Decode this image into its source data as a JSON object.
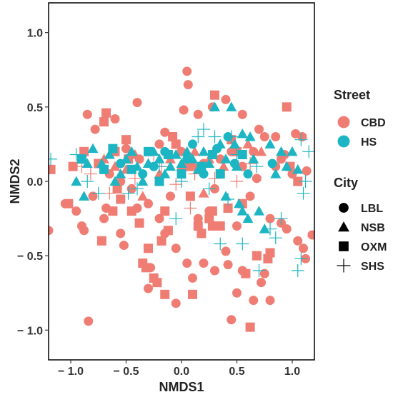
{
  "chart_data": {
    "type": "scatter",
    "xlabel": "NMDS1",
    "ylabel": "NMDS2",
    "xlim": [
      -1.2,
      1.2
    ],
    "ylim": [
      -1.2,
      1.2
    ],
    "xticks": [
      -1.0,
      -0.5,
      0.0,
      0.5,
      1.0
    ],
    "yticks": [
      -1.0,
      -0.5,
      0.0,
      0.5,
      1.0
    ],
    "xtick_labels": [
      "− 1.0",
      "− 0.5",
      "0.0",
      "0.5",
      "1.0"
    ],
    "ytick_labels": [
      "− 1.0",
      "− 0.5",
      "0.0",
      "0.5",
      "1.0"
    ],
    "grid": false,
    "legend_position": "right",
    "colors": {
      "CBD": "#ef7d73",
      "HS": "#1cb5c3"
    },
    "legend": {
      "color_title": "Street",
      "color_entries": [
        {
          "label": "CBD",
          "color": "#ef7d73"
        },
        {
          "label": "HS",
          "color": "#1cb5c3"
        }
      ],
      "shape_title": "City",
      "shape_entries": [
        {
          "label": "LBL",
          "shape": "circle"
        },
        {
          "label": "NSB",
          "shape": "triangle"
        },
        {
          "label": "OXM",
          "shape": "square"
        },
        {
          "label": "SHS",
          "shape": "cross"
        }
      ]
    },
    "series": [
      {
        "street": "CBD",
        "city": "LBL",
        "points": [
          [
            -1.2,
            -0.33
          ],
          [
            -0.84,
            -0.94
          ],
          [
            -0.85,
            0.45
          ],
          [
            -0.78,
            0.35
          ],
          [
            -0.6,
            0.42
          ],
          [
            -0.5,
            0.22
          ],
          [
            -0.4,
            0.53
          ],
          [
            -0.15,
            0.33
          ],
          [
            0.02,
            0.48
          ],
          [
            0.05,
            0.74
          ],
          [
            0.06,
            0.65
          ],
          [
            0.28,
            0.5
          ],
          [
            0.4,
            0.55
          ],
          [
            0.55,
            0.45
          ],
          [
            0.7,
            0.35
          ],
          [
            0.75,
            0.3
          ],
          [
            0.85,
            0.3
          ],
          [
            0.93,
            0.18
          ],
          [
            1.03,
            0.32
          ],
          [
            1.09,
            0.3
          ],
          [
            1.13,
            0.07
          ],
          [
            -1.05,
            -0.15
          ],
          [
            -0.95,
            -0.2
          ],
          [
            -0.9,
            -0.3
          ],
          [
            -0.88,
            -0.33
          ],
          [
            -0.7,
            -0.25
          ],
          [
            -0.55,
            -0.35
          ],
          [
            -0.52,
            -0.43
          ],
          [
            -0.4,
            -0.18
          ],
          [
            -0.3,
            -0.15
          ],
          [
            -0.2,
            -0.25
          ],
          [
            -0.15,
            -0.35
          ],
          [
            -0.05,
            -0.45
          ],
          [
            0.05,
            -0.55
          ],
          [
            0.1,
            -0.65
          ],
          [
            0.2,
            -0.55
          ],
          [
            0.3,
            -0.6
          ],
          [
            0.4,
            -0.47
          ],
          [
            0.42,
            -0.56
          ],
          [
            0.45,
            -0.93
          ],
          [
            0.5,
            -0.75
          ],
          [
            0.55,
            -0.6
          ],
          [
            0.65,
            -0.8
          ],
          [
            0.72,
            -0.68
          ],
          [
            0.75,
            -0.62
          ],
          [
            0.8,
            -0.8
          ],
          [
            0.9,
            -0.28
          ],
          [
            0.95,
            -0.32
          ],
          [
            1.05,
            -0.4
          ],
          [
            1.1,
            -0.45
          ],
          [
            1.12,
            -0.52
          ],
          [
            1.18,
            -0.36
          ],
          [
            -0.05,
            -0.82
          ],
          [
            -0.3,
            -0.72
          ],
          [
            -0.1,
            -0.1
          ],
          [
            0.15,
            -0.25
          ],
          [
            0.25,
            -0.2
          ],
          [
            0.3,
            -0.05
          ],
          [
            0.5,
            -0.3
          ],
          [
            0.62,
            -0.1
          ],
          [
            0.68,
            0.02
          ],
          [
            0.8,
            -0.25
          ],
          [
            0.85,
            0.1
          ],
          [
            0.9,
            0.15
          ],
          [
            1.0,
            0.05
          ],
          [
            -0.65,
            0.05
          ],
          [
            -0.55,
            0.0
          ],
          [
            -0.45,
            -0.05
          ],
          [
            -0.38,
            0.15
          ],
          [
            -0.2,
            0.25
          ],
          [
            0.0,
            0.2
          ],
          [
            0.1,
            0.1
          ],
          [
            0.2,
            0.12
          ],
          [
            0.35,
            0.15
          ],
          [
            0.45,
            0.2
          ],
          [
            0.55,
            0.1
          ],
          [
            0.65,
            0.2
          ],
          [
            -0.8,
            -0.1
          ],
          [
            -0.68,
            -0.18
          ],
          [
            0.15,
            0.45
          ],
          [
            -0.28,
            -0.58
          ]
        ]
      },
      {
        "street": "CBD",
        "city": "NSB",
        "points": [
          [
            -0.6,
            0.1
          ],
          [
            -0.5,
            0.08
          ],
          [
            -0.42,
            0.18
          ],
          [
            -0.3,
            0.12
          ],
          [
            -0.2,
            0.05
          ],
          [
            -0.1,
            0.15
          ],
          [
            0.0,
            0.1
          ],
          [
            0.12,
            0.2
          ],
          [
            0.25,
            0.15
          ],
          [
            0.38,
            0.1
          ],
          [
            -0.7,
            0.15
          ],
          [
            0.6,
            0.25
          ],
          [
            0.72,
            0.2
          ],
          [
            -0.35,
            -0.1
          ],
          [
            0.2,
            -0.08
          ]
        ]
      },
      {
        "street": "CBD",
        "city": "OXM",
        "points": [
          [
            -1.18,
            0.08
          ],
          [
            -1.02,
            -0.15
          ],
          [
            -0.98,
            0.1
          ],
          [
            -0.88,
            0.2
          ],
          [
            -0.75,
            0.12
          ],
          [
            -0.7,
            0.4
          ],
          [
            -0.68,
            0.46
          ],
          [
            -0.6,
            0.2
          ],
          [
            -0.58,
            -0.05
          ],
          [
            -0.55,
            -0.12
          ],
          [
            -0.5,
            0.28
          ],
          [
            -0.48,
            0.15
          ],
          [
            -0.45,
            -0.2
          ],
          [
            -0.38,
            -0.28
          ],
          [
            -0.35,
            -0.55
          ],
          [
            -0.32,
            -0.58
          ],
          [
            -0.3,
            -0.45
          ],
          [
            -0.25,
            -0.65
          ],
          [
            -0.22,
            -0.68
          ],
          [
            -0.18,
            -0.4
          ],
          [
            -0.15,
            -0.2
          ],
          [
            -0.12,
            -0.33
          ],
          [
            -0.08,
            0.3
          ],
          [
            -0.05,
            0.25
          ],
          [
            0.05,
            0.1
          ],
          [
            0.08,
            -0.1
          ],
          [
            0.15,
            -0.3
          ],
          [
            0.18,
            -0.35
          ],
          [
            0.25,
            -0.25
          ],
          [
            0.28,
            -0.2
          ],
          [
            0.3,
            0.58
          ],
          [
            0.35,
            -0.3
          ],
          [
            0.42,
            -0.18
          ],
          [
            0.45,
            0.28
          ],
          [
            0.5,
            0.2
          ],
          [
            0.55,
            -0.15
          ],
          [
            0.62,
            -0.98
          ],
          [
            0.68,
            -0.5
          ],
          [
            0.78,
            -0.52
          ],
          [
            0.8,
            -0.48
          ],
          [
            0.95,
            0.5
          ],
          [
            0.98,
            0.1
          ],
          [
            1.05,
            0.0
          ],
          [
            -0.72,
            -0.4
          ],
          [
            -0.62,
            -0.2
          ],
          [
            -0.15,
            -0.76
          ],
          [
            0.1,
            -0.76
          ],
          [
            0.58,
            -0.62
          ],
          [
            0.28,
            -0.3
          ]
        ]
      },
      {
        "street": "CBD",
        "city": "SHS",
        "points": [
          [
            -0.9,
            0.1
          ],
          [
            -0.82,
            0.05
          ],
          [
            -0.65,
            -0.08
          ],
          [
            -0.42,
            0.02
          ],
          [
            -0.18,
            0.1
          ],
          [
            -0.05,
            -0.02
          ],
          [
            0.12,
            0.05
          ],
          [
            0.3,
            0.02
          ],
          [
            0.5,
            0.0
          ],
          [
            0.62,
            0.12
          ],
          [
            -0.25,
            0.18
          ],
          [
            0.08,
            -0.18
          ]
        ]
      },
      {
        "street": "HS",
        "city": "LBL",
        "points": [
          [
            -0.55,
            0.12
          ],
          [
            -0.35,
            0.05
          ],
          [
            -0.15,
            0.2
          ],
          [
            0.05,
            0.15
          ],
          [
            0.2,
            0.05
          ],
          [
            0.32,
            0.22
          ],
          [
            0.48,
            0.12
          ],
          [
            0.6,
            0.05
          ],
          [
            0.82,
            0.12
          ],
          [
            -0.25,
            0.1
          ],
          [
            0.1,
            0.25
          ],
          [
            0.42,
            0.3
          ]
        ]
      },
      {
        "street": "HS",
        "city": "NSB",
        "points": [
          [
            -0.85,
            0.12
          ],
          [
            -0.8,
            0.22
          ],
          [
            -0.72,
            0.12
          ],
          [
            -0.65,
            0.18
          ],
          [
            -0.6,
            0.0
          ],
          [
            -0.55,
            0.05
          ],
          [
            -0.5,
            0.15
          ],
          [
            -0.45,
            0.2
          ],
          [
            -0.4,
            0.1
          ],
          [
            -0.35,
            0.0
          ],
          [
            -0.3,
            0.12
          ],
          [
            -0.25,
            0.2
          ],
          [
            -0.2,
            0.15
          ],
          [
            -0.15,
            0.05
          ],
          [
            -0.1,
            0.1
          ],
          [
            -0.05,
            0.18
          ],
          [
            0.0,
            0.12
          ],
          [
            0.05,
            0.2
          ],
          [
            0.1,
            0.15
          ],
          [
            0.15,
            0.08
          ],
          [
            0.2,
            0.2
          ],
          [
            0.25,
            0.12
          ],
          [
            0.3,
            0.5
          ],
          [
            0.35,
            0.25
          ],
          [
            0.4,
            0.15
          ],
          [
            0.45,
            0.5
          ],
          [
            0.48,
            0.25
          ],
          [
            0.5,
            0.1
          ],
          [
            0.52,
            -0.15
          ],
          [
            0.55,
            -0.2
          ],
          [
            0.6,
            -0.25
          ],
          [
            0.62,
            0.3
          ],
          [
            0.65,
            0.15
          ],
          [
            0.7,
            -0.2
          ],
          [
            0.75,
            -0.32
          ],
          [
            0.8,
            0.25
          ],
          [
            0.85,
            0.05
          ],
          [
            0.9,
            0.2
          ],
          [
            0.95,
            0.1
          ],
          [
            1.0,
            0.2
          ],
          [
            1.05,
            0.08
          ],
          [
            -0.95,
            0.0
          ],
          [
            -0.88,
            -0.1
          ],
          [
            0.4,
            -0.1
          ],
          [
            0.55,
            0.32
          ]
        ]
      },
      {
        "street": "HS",
        "city": "OXM",
        "points": [
          [
            -0.9,
            0.15
          ],
          [
            -0.7,
            0.08
          ],
          [
            -0.62,
            0.22
          ],
          [
            -0.45,
            0.08
          ],
          [
            -0.3,
            0.2
          ],
          [
            -0.12,
            0.18
          ],
          [
            0.0,
            0.05
          ],
          [
            0.18,
            0.1
          ],
          [
            0.28,
            0.18
          ],
          [
            0.35,
            0.05
          ],
          [
            -0.2,
            0.0
          ],
          [
            0.55,
            0.18
          ]
        ]
      },
      {
        "street": "HS",
        "city": "SHS",
        "points": [
          [
            -1.18,
            0.15
          ],
          [
            -0.95,
            0.18
          ],
          [
            -0.85,
            0.0
          ],
          [
            -0.75,
            -0.08
          ],
          [
            -0.4,
            -0.05
          ],
          [
            -0.2,
            0.1
          ],
          [
            0.0,
            0.0
          ],
          [
            0.15,
            0.3
          ],
          [
            0.2,
            0.35
          ],
          [
            0.3,
            0.3
          ],
          [
            0.45,
            0.3
          ],
          [
            0.5,
            0.18
          ],
          [
            0.55,
            -0.42
          ],
          [
            0.42,
            -0.12
          ],
          [
            0.25,
            -0.05
          ],
          [
            0.35,
            -0.42
          ],
          [
            0.7,
            -0.6
          ],
          [
            0.8,
            -0.32
          ],
          [
            0.85,
            -0.38
          ],
          [
            0.9,
            -0.25
          ],
          [
            1.05,
            -0.6
          ],
          [
            1.08,
            -0.52
          ],
          [
            1.1,
            -0.08
          ],
          [
            1.12,
            0.0
          ],
          [
            1.15,
            0.2
          ],
          [
            1.08,
            0.28
          ],
          [
            -0.05,
            -0.25
          ],
          [
            0.68,
            0.1
          ],
          [
            -0.48,
            -0.08
          ]
        ]
      }
    ]
  }
}
